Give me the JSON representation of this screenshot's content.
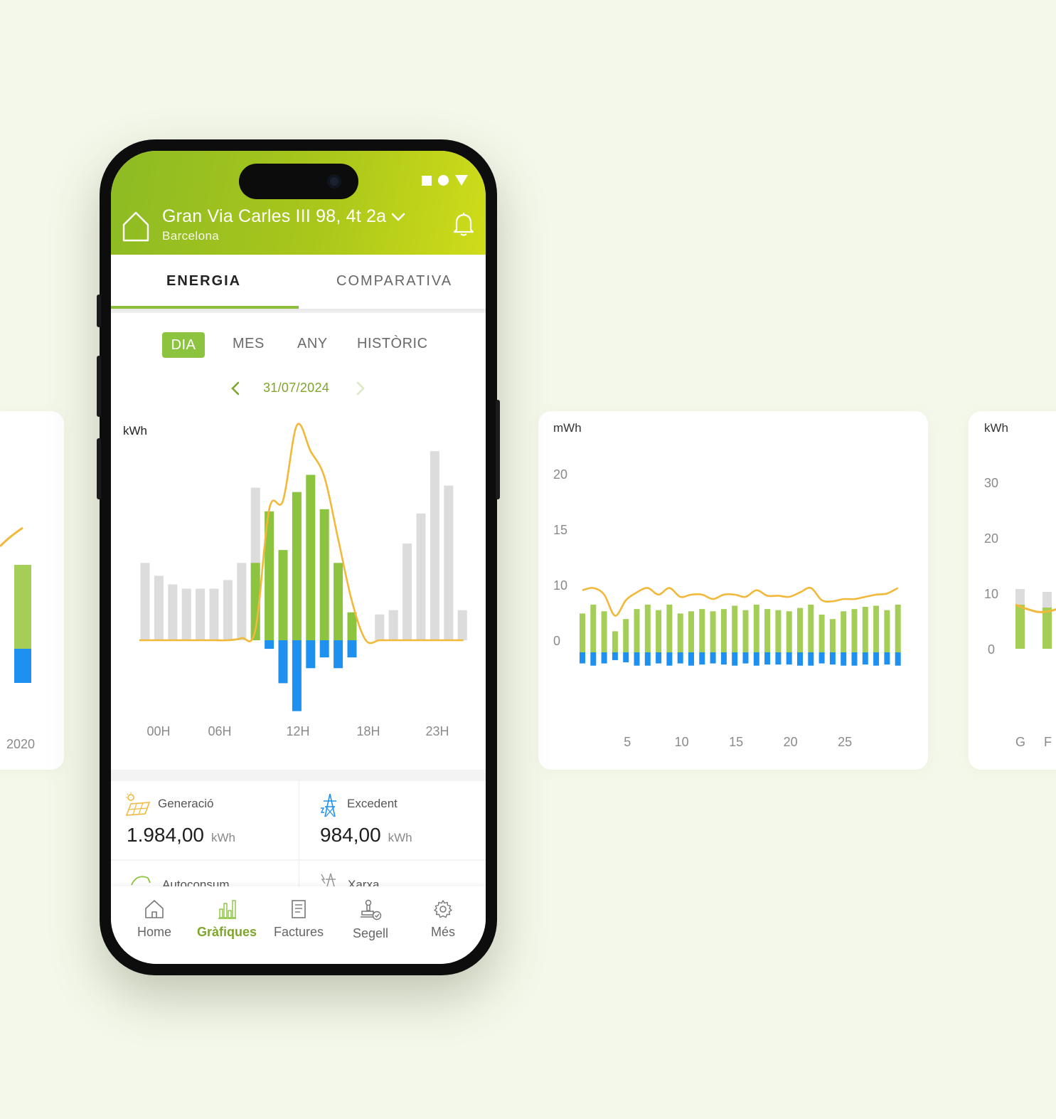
{
  "header": {
    "address": "Gran Via Carles III 98, 4t 2a",
    "city": "Barcelona"
  },
  "tabs": [
    "ENERGIA",
    "COMPARATIVA"
  ],
  "periods": {
    "dia": "DIA",
    "mes": "MES",
    "any": "ANY",
    "historic": "HISTÒRIC"
  },
  "date": "31/07/2024",
  "stats": {
    "generacio": {
      "label": "Generació",
      "value": "1.984,00",
      "unit": "kWh"
    },
    "excedent": {
      "label": "Excedent",
      "value": "984,00",
      "unit": "kWh"
    },
    "autoconsum": {
      "label": "Autoconsum"
    },
    "xarxa": {
      "label": "Xarxa"
    }
  },
  "nav": {
    "home": "Home",
    "grafiques": "Gràfiques",
    "factures": "Factures",
    "segell": "Segell",
    "mes": "Més"
  },
  "colors": {
    "brand_green": "#8cc43f",
    "consumption_grey": "#dcdcdc",
    "surplus_blue": "#1e90f0",
    "line_orange": "#f2b83a"
  },
  "chart_data": [
    {
      "type": "bar",
      "name": "daily",
      "ylabel": "kWh",
      "x_ticks": [
        "00H",
        "06H",
        "12H",
        "18H",
        "23H"
      ],
      "categories": [
        "0",
        "1",
        "2",
        "3",
        "4",
        "5",
        "6",
        "7",
        "8",
        "9",
        "10",
        "11",
        "12",
        "13",
        "14",
        "15",
        "16",
        "17",
        "18",
        "19",
        "20",
        "21",
        "22",
        "23"
      ],
      "series": [
        {
          "values": [
            3.6,
            3.0,
            2.6,
            2.4,
            2.4,
            2.4,
            2.8,
            3.6,
            7.1,
            0,
            0,
            0,
            0,
            0,
            0,
            0,
            0,
            1.2,
            1.4,
            4.5,
            5.9,
            8.8,
            7.2,
            1.4
          ]
        },
        {
          "values": [
            0,
            0,
            0,
            0,
            0,
            0,
            0,
            0,
            3.6,
            6.0,
            4.2,
            6.9,
            7.7,
            6.1,
            3.6,
            1.3,
            0,
            0,
            0,
            0,
            0,
            0,
            0,
            0
          ]
        },
        {
          "values": [
            0,
            0,
            0,
            0,
            0,
            0,
            0,
            0,
            0,
            -0.4,
            -2.0,
            -3.3,
            -1.3,
            -0.8,
            -1.3,
            -0.8,
            0,
            0,
            0,
            0,
            0,
            0,
            0,
            0
          ]
        },
        {
          "values": [
            0,
            0,
            0,
            0,
            0,
            0,
            0,
            0.1,
            0.5,
            6.1,
            6.5,
            10.0,
            8.8,
            7.6,
            4.7,
            1.8,
            0,
            0,
            0,
            0,
            0,
            0,
            0,
            0
          ]
        }
      ]
    },
    {
      "type": "bar",
      "name": "monthly",
      "ylabel": "mWh",
      "y_ticks": [
        20,
        15,
        10,
        0
      ],
      "x_ticks": [
        5,
        10,
        15,
        20,
        25
      ],
      "categories": [
        1,
        2,
        3,
        4,
        5,
        6,
        7,
        8,
        9,
        10,
        11,
        12,
        13,
        14,
        15,
        16,
        17,
        18,
        19,
        20,
        21,
        22,
        23,
        24,
        25,
        26,
        27,
        28,
        29,
        30
      ],
      "series": [
        {
          "values": [
            3.5,
            4.3,
            3.7,
            1.9,
            3.0,
            3.9,
            4.3,
            3.8,
            4.3,
            3.5,
            3.7,
            3.9,
            3.7,
            3.9,
            4.2,
            3.8,
            4.3,
            3.9,
            3.8,
            3.7,
            4.0,
            4.3,
            3.4,
            3.0,
            3.7,
            3.9,
            4.1,
            4.2,
            3.8,
            4.3
          ]
        },
        {
          "values": [
            -1.0,
            -1.2,
            -1.0,
            -0.7,
            -0.9,
            -1.2,
            -1.2,
            -1.0,
            -1.2,
            -1.0,
            -1.2,
            -1.1,
            -1.0,
            -1.1,
            -1.2,
            -1.0,
            -1.2,
            -1.1,
            -1.1,
            -1.1,
            -1.2,
            -1.2,
            -1.0,
            -1.1,
            -1.2,
            -1.2,
            -1.1,
            -1.2,
            -1.1,
            -1.2
          ]
        },
        {
          "values": [
            5.6,
            5.8,
            5.2,
            3.3,
            4.7,
            5.4,
            5.8,
            5.2,
            5.8,
            5.0,
            5.2,
            5.2,
            4.8,
            5.2,
            5.2,
            5.0,
            5.6,
            5.1,
            5.1,
            5.0,
            5.4,
            5.8,
            4.7,
            4.6,
            4.8,
            4.8,
            5.0,
            5.2,
            5.3,
            5.8
          ]
        }
      ]
    },
    {
      "type": "bar",
      "name": "yearly-partial",
      "ylabel": "kWh",
      "y_ticks": [
        30,
        20,
        10,
        0
      ],
      "x_ticks": [
        "G",
        "F"
      ]
    },
    {
      "type": "bar",
      "name": "historic-partial",
      "x_ticks": [
        "2020"
      ]
    }
  ]
}
